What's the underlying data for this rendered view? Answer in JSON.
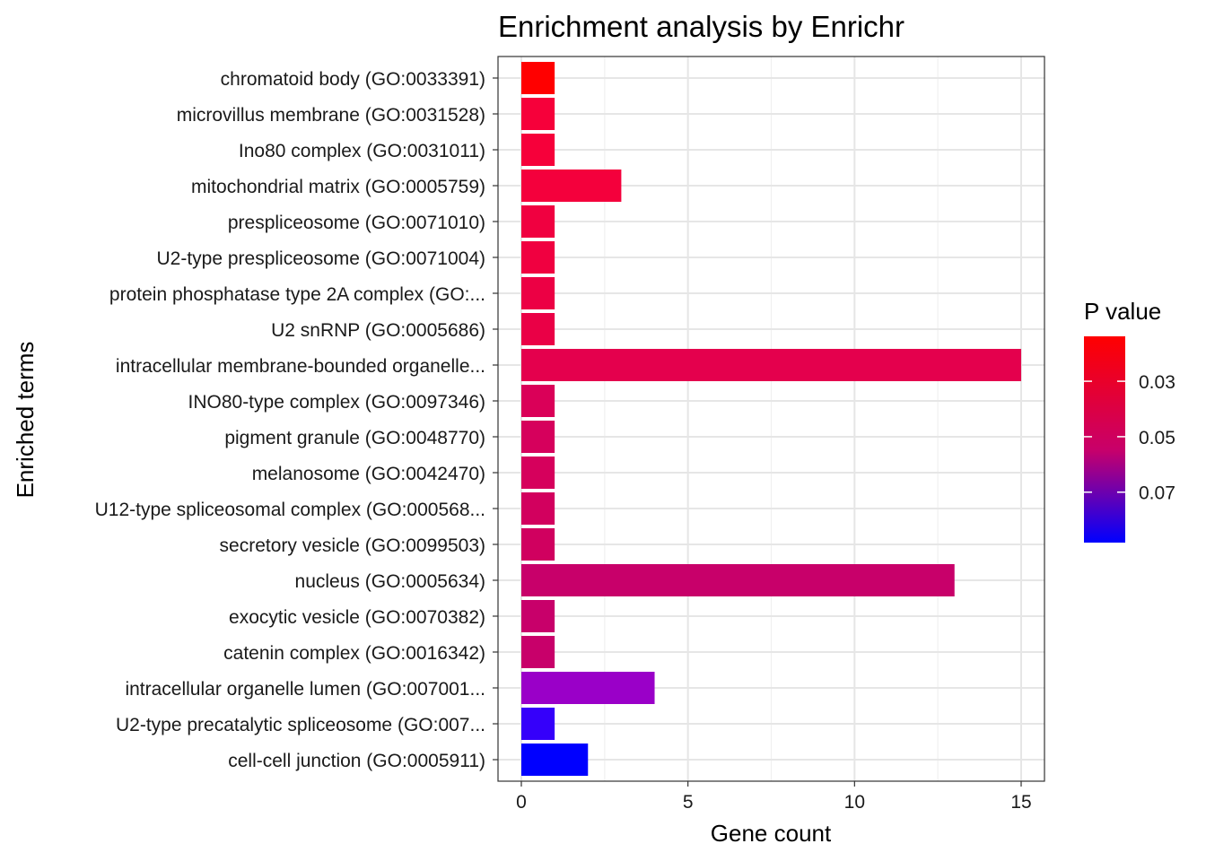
{
  "chart_data": {
    "type": "bar",
    "orientation": "horizontal",
    "title": "Enrichment analysis by Enrichr",
    "xlabel": "Gene count",
    "ylabel": "Enriched terms",
    "xlim": [
      -0.7,
      15.7
    ],
    "xticks": [
      0,
      5,
      10,
      15
    ],
    "categories": [
      "chromatoid body (GO:0033391)",
      "microvillus membrane (GO:0031528)",
      "Ino80 complex (GO:0031011)",
      "mitochondrial matrix (GO:0005759)",
      "prespliceosome (GO:0071010)",
      "U2-type prespliceosome (GO:0071004)",
      "protein phosphatase type 2A complex (GO:...",
      "U2 snRNP (GO:0005686)",
      "intracellular membrane-bounded organelle...",
      "INO80-type complex (GO:0097346)",
      "pigment granule (GO:0048770)",
      "melanosome (GO:0042470)",
      "U12-type spliceosomal complex (GO:000568...",
      "secretory vesicle (GO:0099503)",
      "nucleus (GO:0005634)",
      "exocytic vesicle (GO:0070382)",
      "catenin complex (GO:0016342)",
      "intracellular organelle lumen (GO:007001...",
      "U2-type precatalytic spliceosome (GO:007...",
      "cell-cell junction (GO:0005911)"
    ],
    "values": [
      1,
      1,
      1,
      3,
      1,
      1,
      1,
      1,
      15,
      1,
      1,
      1,
      1,
      1,
      13,
      1,
      1,
      4,
      1,
      2
    ],
    "colors": [
      "#ff0000",
      "#f6003a",
      "#f6003a",
      "#f4003c",
      "#f00040",
      "#f00040",
      "#ec0044",
      "#ea0046",
      "#e4004d",
      "#da0058",
      "#d6005c",
      "#d6005c",
      "#d2005e",
      "#d0005f",
      "#c8006a",
      "#c8006a",
      "#c8006a",
      "#9a00c8",
      "#3500fa",
      "#0000ff"
    ],
    "legend": {
      "title": "P value",
      "position": "right",
      "ticks": [
        "0.03",
        "0.05",
        "0.07"
      ],
      "tick_values": [
        0.03,
        0.05,
        0.07
      ],
      "range": [
        0.0138,
        0.0882
      ],
      "color_low": "#ff0000",
      "color_mid": "#c8006a",
      "color_high": "#0000ff"
    }
  }
}
